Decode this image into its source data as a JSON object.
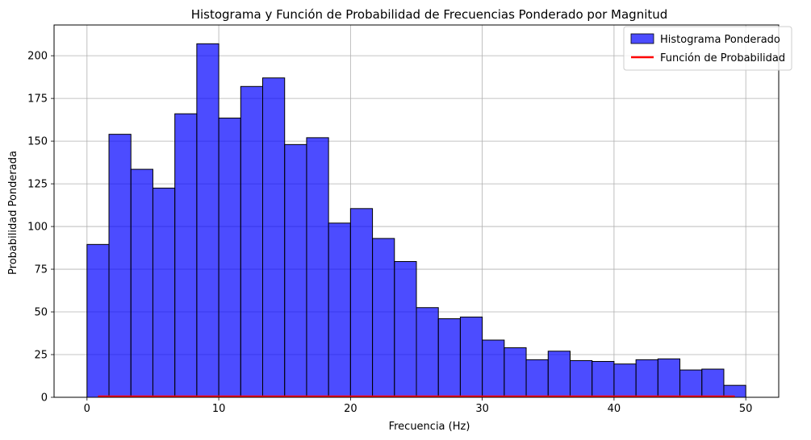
{
  "chart_data": {
    "type": "bar",
    "title": "Histograma y Función de Probabilidad de Frecuencias Ponderado por Magnitud",
    "xlabel": "Frecuencia (Hz)",
    "ylabel": "Probabilidad Ponderada",
    "xlim": [
      -2.5,
      52.5
    ],
    "ylim": [
      0,
      218
    ],
    "xticks": [
      0,
      10,
      20,
      30,
      40,
      50
    ],
    "yticks": [
      0,
      25,
      50,
      75,
      100,
      125,
      150,
      175,
      200
    ],
    "grid": true,
    "legend_position": "top-right",
    "bin_edges": [
      0,
      1.667,
      3.333,
      5,
      6.667,
      8.333,
      10,
      11.667,
      13.333,
      15,
      16.667,
      18.333,
      20,
      21.667,
      23.333,
      25,
      26.667,
      28.333,
      30,
      31.667,
      33.333,
      35,
      36.667,
      38.333,
      40,
      41.667,
      43.333,
      45,
      46.667,
      48.333,
      50
    ],
    "series": [
      {
        "name": "Histograma Ponderado",
        "kind": "histogram",
        "color": "#0000ff",
        "edgecolor": "#000000",
        "values": [
          89.5,
          154,
          133.5,
          122.5,
          166,
          207,
          163.5,
          182,
          187,
          148,
          152,
          102,
          110.5,
          93,
          79.5,
          52.5,
          46,
          47,
          33.5,
          29,
          22,
          27,
          21.5,
          21,
          19.5,
          22,
          22.5,
          16,
          16.5,
          7
        ]
      },
      {
        "name": "Función de Probabilidad",
        "kind": "line",
        "color": "#ff0000",
        "x": [
          0.833,
          2.5,
          4.167,
          5.833,
          7.5,
          9.167,
          10.833,
          12.5,
          14.167,
          15.833,
          17.5,
          19.167,
          20.833,
          22.5,
          24.167,
          25.833,
          27.5,
          29.167,
          30.833,
          32.5,
          34.167,
          35.833,
          37.5,
          39.167,
          40.833,
          42.5,
          44.167,
          45.833,
          47.5,
          49.167
        ],
        "values": [
          0.5,
          0.5,
          0.5,
          0.5,
          0.5,
          0.5,
          0.5,
          0.5,
          0.5,
          0.5,
          0.5,
          0.5,
          0.5,
          0.5,
          0.5,
          0.5,
          0.5,
          0.5,
          0.5,
          0.5,
          0.5,
          0.5,
          0.5,
          0.5,
          0.5,
          0.5,
          0.5,
          0.5,
          0.5,
          0.5
        ]
      }
    ]
  }
}
